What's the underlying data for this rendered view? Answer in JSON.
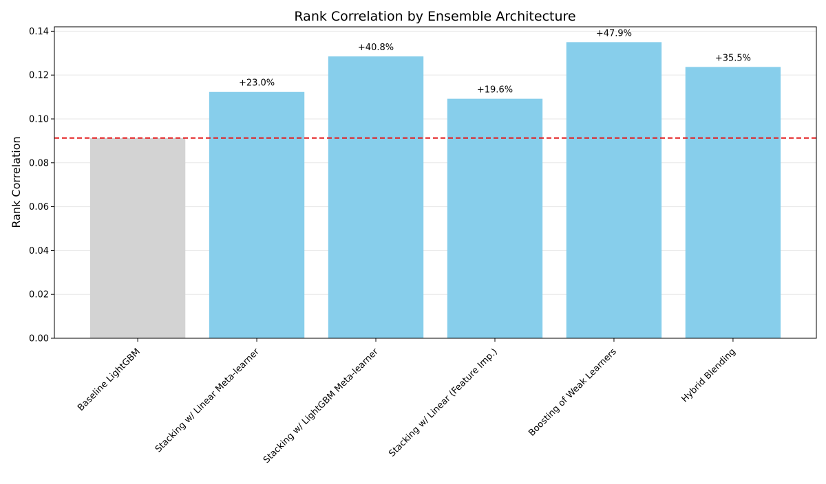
{
  "chart_data": {
    "type": "bar",
    "title": "Rank Correlation by Ensemble Architecture",
    "xlabel": "",
    "ylabel": "Rank Correlation",
    "ylim": [
      0,
      0.142
    ],
    "yticks": [
      0.0,
      0.02,
      0.04,
      0.06,
      0.08,
      0.1,
      0.12,
      0.14
    ],
    "ytick_labels": [
      "0.00",
      "0.02",
      "0.04",
      "0.06",
      "0.08",
      "0.10",
      "0.12",
      "0.14"
    ],
    "grid": "horizontal",
    "categories": [
      "Baseline LightGBM",
      "Stacking w/ Linear Meta-learner",
      "Stacking w/ LightGBM Meta-learner",
      "Stacking w/ Linear (Feature Imp.)",
      "Boosting of Weak Learners",
      "Hybrid Blending"
    ],
    "values": [
      0.0913,
      0.1123,
      0.1285,
      0.1092,
      0.135,
      0.1237
    ],
    "data_labels": [
      "",
      "+23.0%",
      "+40.8%",
      "+19.6%",
      "+47.9%",
      "+35.5%"
    ],
    "bar_colors": [
      "#d3d3d3",
      "#87ceeb",
      "#87ceeb",
      "#87ceeb",
      "#87ceeb",
      "#87ceeb"
    ],
    "baseline": {
      "value": 0.0913,
      "color": "#e41a1c",
      "style": "dashed"
    }
  }
}
